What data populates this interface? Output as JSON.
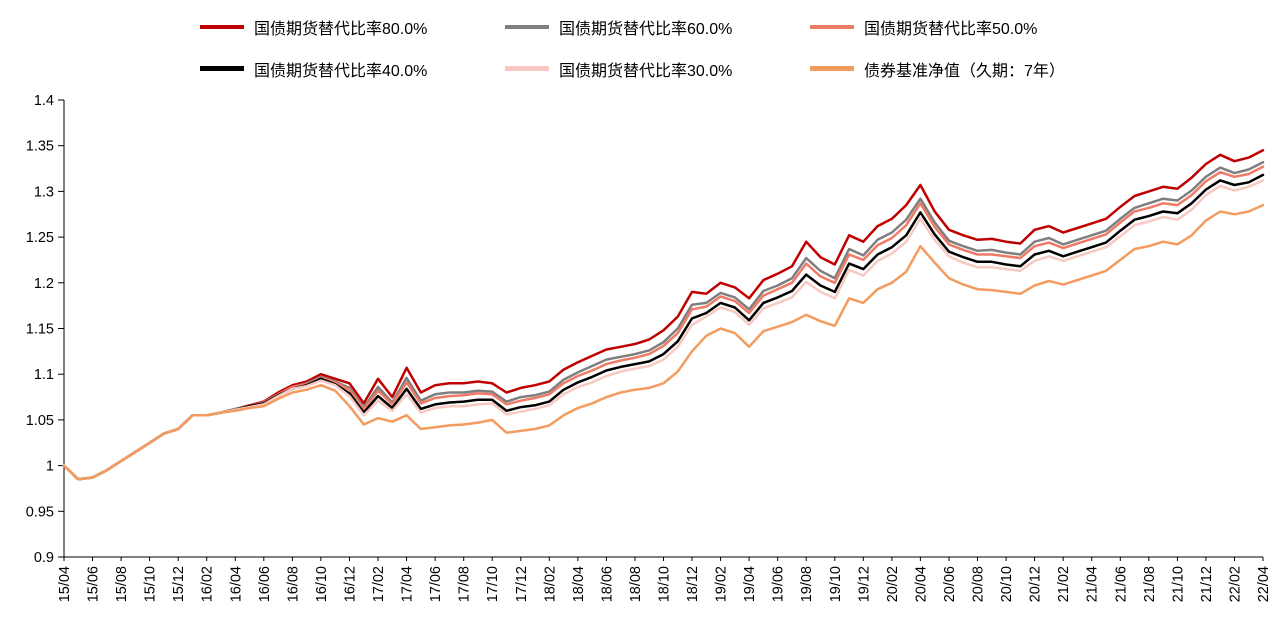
{
  "chart_data": {
    "type": "line",
    "title": "",
    "xlabel": "",
    "ylabel": "",
    "ylim": [
      0.9,
      1.4
    ],
    "grid": false,
    "legend_position": "top",
    "x_tick_interval": 2,
    "y_ticks": [
      "0.9",
      "0.95",
      "1",
      "1.05",
      "1.1",
      "1.15",
      "1.2",
      "1.25",
      "1.3",
      "1.35",
      "1.4"
    ],
    "x": [
      "15/04",
      "15/05",
      "15/06",
      "15/07",
      "15/08",
      "15/09",
      "15/10",
      "15/11",
      "15/12",
      "16/01",
      "16/02",
      "16/03",
      "16/04",
      "16/05",
      "16/06",
      "16/07",
      "16/08",
      "16/09",
      "16/10",
      "16/11",
      "16/12",
      "17/01",
      "17/02",
      "17/03",
      "17/04",
      "17/05",
      "17/06",
      "17/07",
      "17/08",
      "17/09",
      "17/10",
      "17/11",
      "17/12",
      "18/01",
      "18/02",
      "18/03",
      "18/04",
      "18/05",
      "18/06",
      "18/07",
      "18/08",
      "18/09",
      "18/10",
      "18/11",
      "18/12",
      "19/01",
      "19/02",
      "19/03",
      "19/04",
      "19/05",
      "19/06",
      "19/07",
      "19/08",
      "19/09",
      "19/10",
      "19/11",
      "19/12",
      "20/01",
      "20/02",
      "20/03",
      "20/04",
      "20/05",
      "20/06",
      "20/07",
      "20/08",
      "20/09",
      "20/10",
      "20/11",
      "20/12",
      "21/01",
      "21/02",
      "21/03",
      "21/04",
      "21/05",
      "21/06",
      "21/07",
      "21/08",
      "21/09",
      "21/10",
      "21/11",
      "21/12",
      "22/01",
      "22/02",
      "22/03",
      "22/04"
    ],
    "series": [
      {
        "name": "国债期货替代比率80.0%",
        "color": "#C00000",
        "values": [
          1.0,
          0.985,
          0.987,
          0.995,
          1.005,
          1.015,
          1.025,
          1.035,
          1.04,
          1.055,
          1.055,
          1.058,
          1.062,
          1.066,
          1.07,
          1.08,
          1.088,
          1.092,
          1.1,
          1.095,
          1.09,
          1.068,
          1.095,
          1.075,
          1.107,
          1.08,
          1.088,
          1.09,
          1.09,
          1.092,
          1.09,
          1.08,
          1.085,
          1.088,
          1.092,
          1.105,
          1.113,
          1.12,
          1.127,
          1.13,
          1.133,
          1.138,
          1.148,
          1.163,
          1.19,
          1.188,
          1.2,
          1.195,
          1.183,
          1.203,
          1.21,
          1.218,
          1.245,
          1.228,
          1.22,
          1.252,
          1.245,
          1.262,
          1.27,
          1.285,
          1.307,
          1.278,
          1.258,
          1.252,
          1.247,
          1.248,
          1.245,
          1.243,
          1.258,
          1.262,
          1.255,
          1.26,
          1.265,
          1.27,
          1.283,
          1.295,
          1.3,
          1.305,
          1.303,
          1.315,
          1.33,
          1.34,
          1.333,
          1.337,
          1.345
        ]
      },
      {
        "name": "国债期货替代比率60.0%",
        "color": "#7F7F7F",
        "values": [
          1.0,
          0.985,
          0.987,
          0.995,
          1.005,
          1.015,
          1.025,
          1.035,
          1.04,
          1.055,
          1.055,
          1.058,
          1.062,
          1.065,
          1.069,
          1.078,
          1.086,
          1.09,
          1.097,
          1.092,
          1.085,
          1.063,
          1.086,
          1.069,
          1.096,
          1.071,
          1.078,
          1.08,
          1.08,
          1.082,
          1.081,
          1.07,
          1.075,
          1.077,
          1.081,
          1.094,
          1.102,
          1.109,
          1.116,
          1.119,
          1.122,
          1.126,
          1.135,
          1.15,
          1.176,
          1.178,
          1.189,
          1.184,
          1.171,
          1.191,
          1.197,
          1.205,
          1.227,
          1.213,
          1.205,
          1.237,
          1.23,
          1.247,
          1.255,
          1.269,
          1.292,
          1.266,
          1.246,
          1.24,
          1.235,
          1.236,
          1.233,
          1.231,
          1.245,
          1.249,
          1.242,
          1.247,
          1.252,
          1.257,
          1.27,
          1.282,
          1.287,
          1.292,
          1.29,
          1.301,
          1.316,
          1.326,
          1.32,
          1.324,
          1.332
        ]
      },
      {
        "name": "国债期货替代比率50.0%",
        "color": "#EF7B66",
        "values": [
          1.0,
          0.985,
          0.987,
          0.995,
          1.005,
          1.015,
          1.025,
          1.035,
          1.04,
          1.055,
          1.055,
          1.058,
          1.061,
          1.065,
          1.069,
          1.078,
          1.086,
          1.089,
          1.096,
          1.091,
          1.083,
          1.061,
          1.082,
          1.067,
          1.091,
          1.068,
          1.074,
          1.076,
          1.077,
          1.079,
          1.078,
          1.067,
          1.071,
          1.074,
          1.078,
          1.09,
          1.098,
          1.104,
          1.111,
          1.115,
          1.118,
          1.122,
          1.131,
          1.145,
          1.171,
          1.174,
          1.185,
          1.18,
          1.167,
          1.186,
          1.193,
          1.2,
          1.221,
          1.207,
          1.2,
          1.231,
          1.225,
          1.241,
          1.249,
          1.263,
          1.287,
          1.261,
          1.242,
          1.236,
          1.231,
          1.231,
          1.229,
          1.227,
          1.24,
          1.244,
          1.238,
          1.243,
          1.248,
          1.253,
          1.266,
          1.278,
          1.282,
          1.287,
          1.285,
          1.296,
          1.311,
          1.321,
          1.316,
          1.319,
          1.327
        ]
      },
      {
        "name": "国债期货替代比率40.0%",
        "color": "#000000",
        "values": [
          1.0,
          0.985,
          0.987,
          0.995,
          1.005,
          1.015,
          1.025,
          1.035,
          1.04,
          1.055,
          1.055,
          1.058,
          1.061,
          1.065,
          1.068,
          1.077,
          1.084,
          1.088,
          1.095,
          1.089,
          1.079,
          1.058,
          1.076,
          1.063,
          1.084,
          1.062,
          1.067,
          1.069,
          1.07,
          1.072,
          1.072,
          1.06,
          1.064,
          1.066,
          1.07,
          1.083,
          1.091,
          1.097,
          1.104,
          1.108,
          1.111,
          1.114,
          1.122,
          1.136,
          1.161,
          1.167,
          1.178,
          1.173,
          1.159,
          1.178,
          1.184,
          1.191,
          1.209,
          1.197,
          1.19,
          1.221,
          1.215,
          1.231,
          1.239,
          1.252,
          1.277,
          1.253,
          1.234,
          1.228,
          1.223,
          1.223,
          1.22,
          1.218,
          1.231,
          1.235,
          1.229,
          1.234,
          1.239,
          1.244,
          1.257,
          1.269,
          1.273,
          1.278,
          1.276,
          1.287,
          1.302,
          1.312,
          1.307,
          1.31,
          1.318
        ]
      },
      {
        "name": "国债期货替代比率30.0%",
        "color": "#F7C9C2",
        "values": [
          1.0,
          0.985,
          0.987,
          0.995,
          1.005,
          1.015,
          1.025,
          1.035,
          1.04,
          1.055,
          1.055,
          1.058,
          1.061,
          1.064,
          1.067,
          1.076,
          1.084,
          1.087,
          1.093,
          1.088,
          1.076,
          1.055,
          1.071,
          1.06,
          1.078,
          1.058,
          1.063,
          1.065,
          1.065,
          1.067,
          1.068,
          1.056,
          1.059,
          1.062,
          1.066,
          1.078,
          1.086,
          1.091,
          1.098,
          1.103,
          1.106,
          1.109,
          1.116,
          1.13,
          1.154,
          1.163,
          1.173,
          1.168,
          1.154,
          1.172,
          1.178,
          1.184,
          1.201,
          1.19,
          1.183,
          1.214,
          1.208,
          1.224,
          1.232,
          1.245,
          1.27,
          1.247,
          1.229,
          1.222,
          1.217,
          1.217,
          1.215,
          1.213,
          1.224,
          1.229,
          1.224,
          1.229,
          1.234,
          1.239,
          1.251,
          1.263,
          1.267,
          1.272,
          1.269,
          1.28,
          1.296,
          1.306,
          1.301,
          1.305,
          1.312
        ]
      },
      {
        "name": "债券基准净值（久期：7年）",
        "color": "#F49B5F",
        "values": [
          1.0,
          0.985,
          0.987,
          0.995,
          1.005,
          1.015,
          1.025,
          1.035,
          1.04,
          1.055,
          1.055,
          1.058,
          1.06,
          1.063,
          1.065,
          1.073,
          1.08,
          1.083,
          1.088,
          1.082,
          1.065,
          1.045,
          1.052,
          1.048,
          1.055,
          1.04,
          1.042,
          1.044,
          1.045,
          1.047,
          1.05,
          1.036,
          1.038,
          1.04,
          1.044,
          1.055,
          1.063,
          1.068,
          1.075,
          1.08,
          1.083,
          1.085,
          1.09,
          1.103,
          1.125,
          1.142,
          1.15,
          1.145,
          1.13,
          1.147,
          1.152,
          1.157,
          1.165,
          1.158,
          1.153,
          1.183,
          1.178,
          1.193,
          1.2,
          1.212,
          1.24,
          1.222,
          1.205,
          1.198,
          1.193,
          1.192,
          1.19,
          1.188,
          1.197,
          1.202,
          1.198,
          1.203,
          1.208,
          1.213,
          1.225,
          1.237,
          1.24,
          1.245,
          1.242,
          1.252,
          1.268,
          1.278,
          1.275,
          1.278,
          1.285
        ]
      }
    ]
  }
}
